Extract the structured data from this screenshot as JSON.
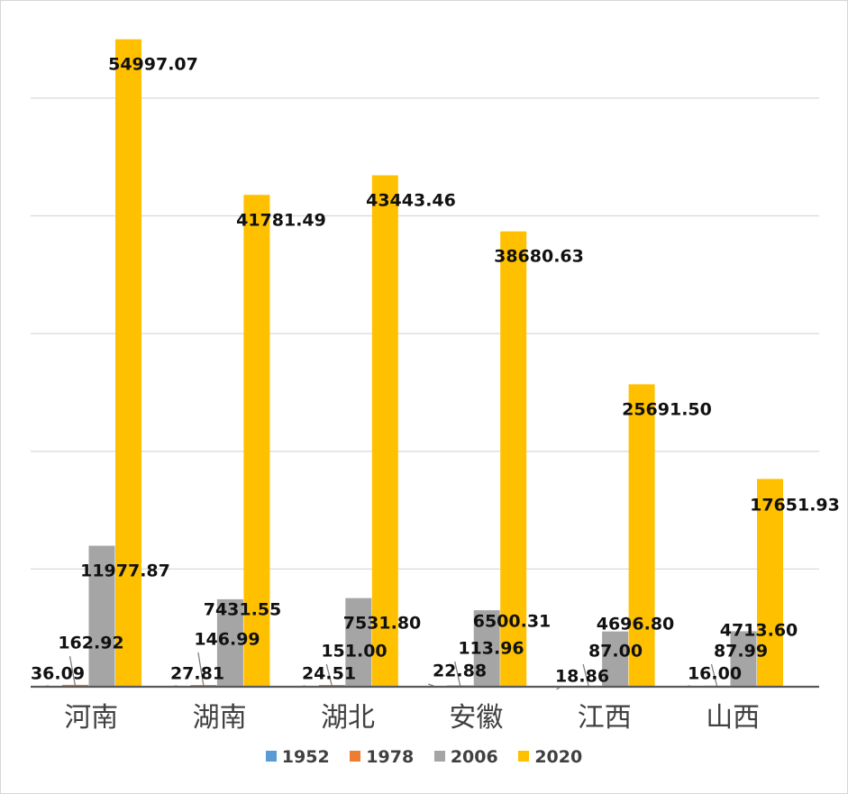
{
  "chart_data": {
    "type": "bar",
    "categories": [
      "河南",
      "湖南",
      "湖北",
      "安徽",
      "江西",
      "山西"
    ],
    "series": [
      {
        "name": "1952",
        "color": "#5B9BD5",
        "values": [
          36.09,
          27.81,
          24.51,
          22.88,
          18.86,
          16.0
        ],
        "labels": [
          "36.09",
          "27.81",
          "24.51",
          "22.88",
          "18.86",
          "16.00"
        ]
      },
      {
        "name": "1978",
        "color": "#ED7D31",
        "values": [
          162.92,
          146.99,
          151.0,
          113.96,
          87.0,
          87.99
        ],
        "labels": [
          "162.92",
          "146.99",
          "151.00",
          "113.96",
          "87.00",
          "87.99"
        ]
      },
      {
        "name": "2006",
        "color": "#A5A5A5",
        "values": [
          11977.87,
          7431.55,
          7531.8,
          6500.31,
          4696.8,
          4713.6
        ],
        "labels": [
          "11977.87",
          "7431.55",
          "7531.80",
          "6500.31",
          "4696.80",
          "4713.60"
        ]
      },
      {
        "name": "2020",
        "color": "#FFC000",
        "values": [
          54997.07,
          41781.49,
          43443.46,
          38680.63,
          25691.5,
          17651.93
        ],
        "labels": [
          "54997.07",
          "41781.49",
          "43443.46",
          "38680.63",
          "25691.50",
          "17651.93"
        ]
      }
    ],
    "ylim": [
      0,
      60000
    ],
    "grid": true,
    "legend": "bottom",
    "data_labels": true
  }
}
